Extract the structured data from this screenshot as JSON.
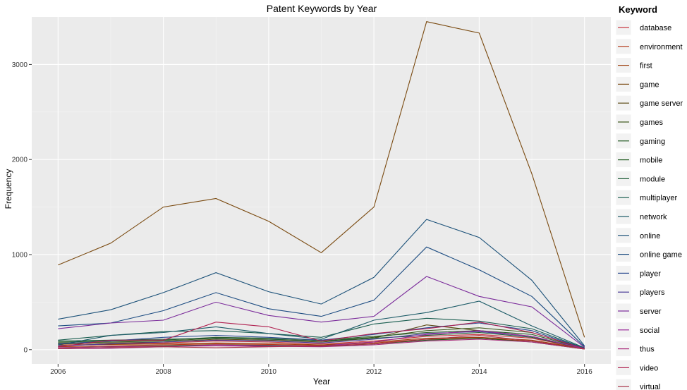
{
  "chart_data": {
    "type": "line",
    "title": "Patent Keywords by Year",
    "xlabel": "Year",
    "ylabel": "Frequency",
    "legend_title": "Keyword",
    "legend_position": "right",
    "grid": true,
    "xlim": [
      2005.5,
      2016.5
    ],
    "ylim": [
      -150,
      3500
    ],
    "x_ticks": [
      2006,
      2008,
      2010,
      2012,
      2014,
      2016
    ],
    "y_ticks": [
      0,
      1000,
      2000,
      3000
    ],
    "x": [
      2006,
      2007,
      2008,
      2009,
      2010,
      2011,
      2012,
      2013,
      2014,
      2015,
      2016
    ],
    "series": [
      {
        "name": "database",
        "color": "#c8303c",
        "values": [
          40,
          60,
          70,
          90,
          80,
          60,
          90,
          140,
          160,
          120,
          10
        ]
      },
      {
        "name": "environment",
        "color": "#b33a1a",
        "values": [
          30,
          40,
          50,
          60,
          55,
          45,
          70,
          110,
          120,
          90,
          8
        ]
      },
      {
        "name": "first",
        "color": "#9c3c0a",
        "values": [
          50,
          55,
          60,
          70,
          65,
          50,
          80,
          120,
          130,
          100,
          10
        ]
      },
      {
        "name": "game",
        "color": "#7a4a10",
        "values": [
          890,
          1120,
          1500,
          1590,
          1350,
          1020,
          1500,
          3450,
          3330,
          1850,
          130
        ]
      },
      {
        "name": "game server",
        "color": "#5c4a16",
        "values": [
          60,
          70,
          80,
          110,
          100,
          80,
          120,
          260,
          200,
          140,
          10
        ]
      },
      {
        "name": "games",
        "color": "#3f5a1e",
        "values": [
          70,
          80,
          90,
          120,
          110,
          90,
          130,
          200,
          230,
          180,
          12
        ]
      },
      {
        "name": "gaming",
        "color": "#2a5e2a",
        "values": [
          80,
          90,
          100,
          130,
          120,
          100,
          140,
          180,
          200,
          160,
          12
        ]
      },
      {
        "name": "mobile",
        "color": "#1e5a1e",
        "values": [
          20,
          30,
          40,
          50,
          45,
          35,
          60,
          100,
          120,
          80,
          6
        ]
      },
      {
        "name": "module",
        "color": "#1a5a34",
        "values": [
          90,
          100,
          110,
          120,
          110,
          90,
          120,
          150,
          180,
          130,
          10
        ]
      },
      {
        "name": "multiplayer",
        "color": "#1a5e50",
        "values": [
          100,
          150,
          190,
          200,
          170,
          130,
          270,
          330,
          300,
          220,
          15
        ]
      },
      {
        "name": "network",
        "color": "#1a5a66",
        "values": [
          50,
          150,
          180,
          240,
          170,
          110,
          310,
          390,
          510,
          250,
          20
        ]
      },
      {
        "name": "online",
        "color": "#1a5078",
        "values": [
          320,
          420,
          600,
          810,
          610,
          480,
          760,
          1370,
          1180,
          730,
          40
        ]
      },
      {
        "name": "online game",
        "color": "#1a4a80",
        "values": [
          250,
          280,
          410,
          600,
          430,
          350,
          520,
          1080,
          840,
          560,
          30
        ]
      },
      {
        "name": "player",
        "color": "#2a4a90",
        "values": [
          60,
          90,
          130,
          150,
          130,
          100,
          160,
          230,
          280,
          200,
          12
        ]
      },
      {
        "name": "players",
        "color": "#4a3c98",
        "values": [
          40,
          60,
          80,
          100,
          90,
          70,
          110,
          170,
          190,
          140,
          10
        ]
      },
      {
        "name": "server",
        "color": "#7a2a9a",
        "values": [
          220,
          280,
          310,
          500,
          360,
          290,
          350,
          770,
          560,
          450,
          25
        ]
      },
      {
        "name": "social",
        "color": "#9a2a9a",
        "values": [
          10,
          15,
          30,
          50,
          40,
          40,
          80,
          160,
          200,
          140,
          8
        ]
      },
      {
        "name": "thus",
        "color": "#a82a7a",
        "values": [
          20,
          30,
          35,
          40,
          35,
          30,
          50,
          90,
          110,
          80,
          6
        ]
      },
      {
        "name": "video",
        "color": "#b02050",
        "values": [
          30,
          100,
          100,
          290,
          240,
          90,
          170,
          220,
          290,
          180,
          10
        ]
      },
      {
        "name": "virtual",
        "color": "#a83248",
        "values": [
          10,
          20,
          30,
          20,
          30,
          40,
          60,
          110,
          150,
          90,
          5
        ]
      }
    ]
  }
}
